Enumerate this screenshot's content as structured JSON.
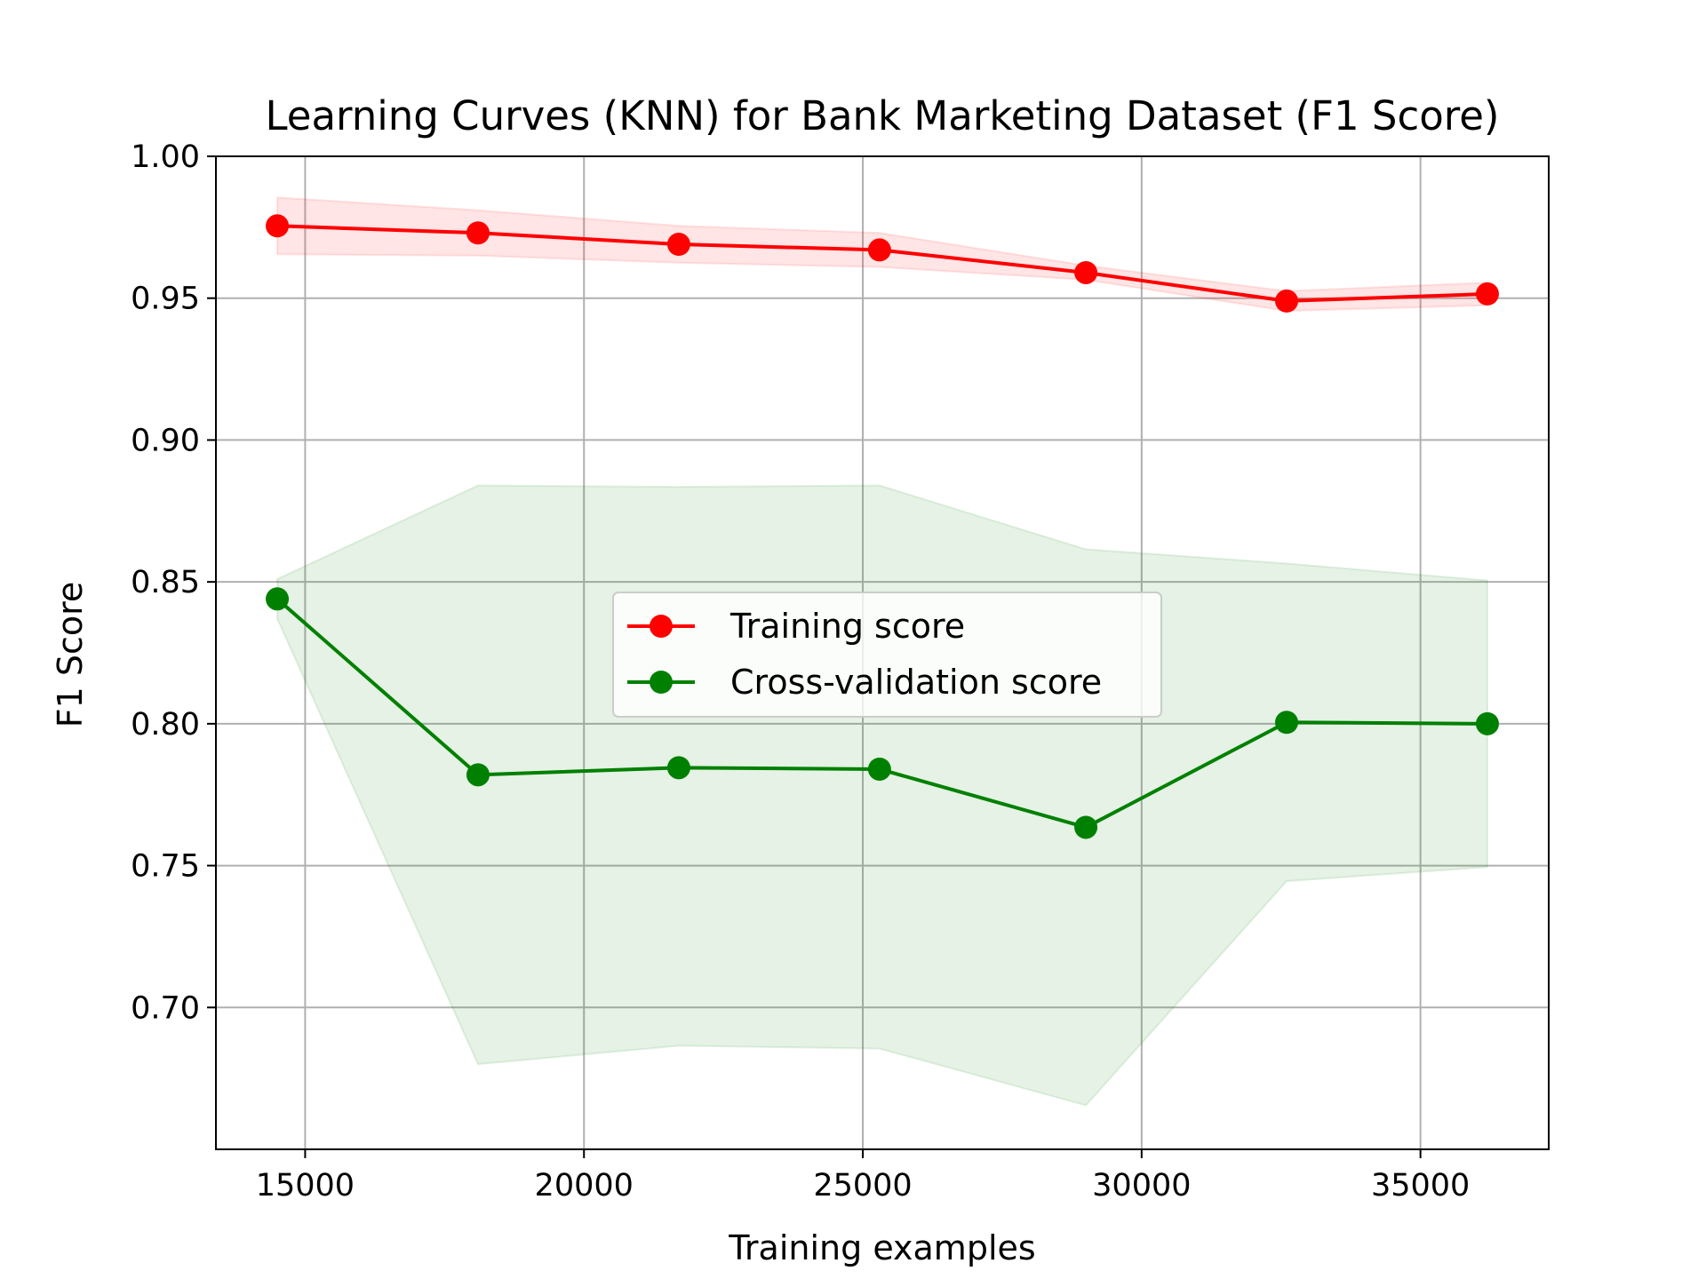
{
  "chart_data": {
    "type": "line",
    "title": "Learning Curves (KNN) for Bank Marketing Dataset (F1 Score)",
    "xlabel": "Training examples",
    "ylabel": "F1 Score",
    "xlim": [
      13400,
      37300
    ],
    "ylim": [
      0.65,
      1.0
    ],
    "x_ticks": [
      15000,
      20000,
      25000,
      30000,
      35000
    ],
    "y_ticks": [
      0.7,
      0.75,
      0.8,
      0.85,
      0.9,
      0.95,
      1.0
    ],
    "x_tick_labels": [
      "15000",
      "20000",
      "25000",
      "30000",
      "35000"
    ],
    "y_tick_labels": [
      "0.70",
      "0.75",
      "0.80",
      "0.85",
      "0.90",
      "0.95",
      "1.00"
    ],
    "grid": true,
    "legend_position": "center",
    "x": [
      14500,
      18100,
      21700,
      25300,
      29000,
      32600,
      36200
    ],
    "series": [
      {
        "name": "Training score",
        "color": "#ff0000",
        "values": [
          0.9755,
          0.973,
          0.969,
          0.967,
          0.959,
          0.949,
          0.9515
        ],
        "band_low": [
          0.9655,
          0.965,
          0.9625,
          0.961,
          0.9565,
          0.9455,
          0.9475
        ],
        "band_high": [
          0.9855,
          0.981,
          0.9755,
          0.973,
          0.9615,
          0.9525,
          0.9555
        ]
      },
      {
        "name": "Cross-validation score",
        "color": "#008000",
        "values": [
          0.844,
          0.782,
          0.7845,
          0.784,
          0.7635,
          0.8005,
          0.8
        ],
        "band_low": [
          0.837,
          0.68,
          0.6865,
          0.6855,
          0.6655,
          0.7445,
          0.7495
        ],
        "band_high": [
          0.851,
          0.884,
          0.8835,
          0.884,
          0.8615,
          0.8565,
          0.8505
        ]
      }
    ]
  }
}
